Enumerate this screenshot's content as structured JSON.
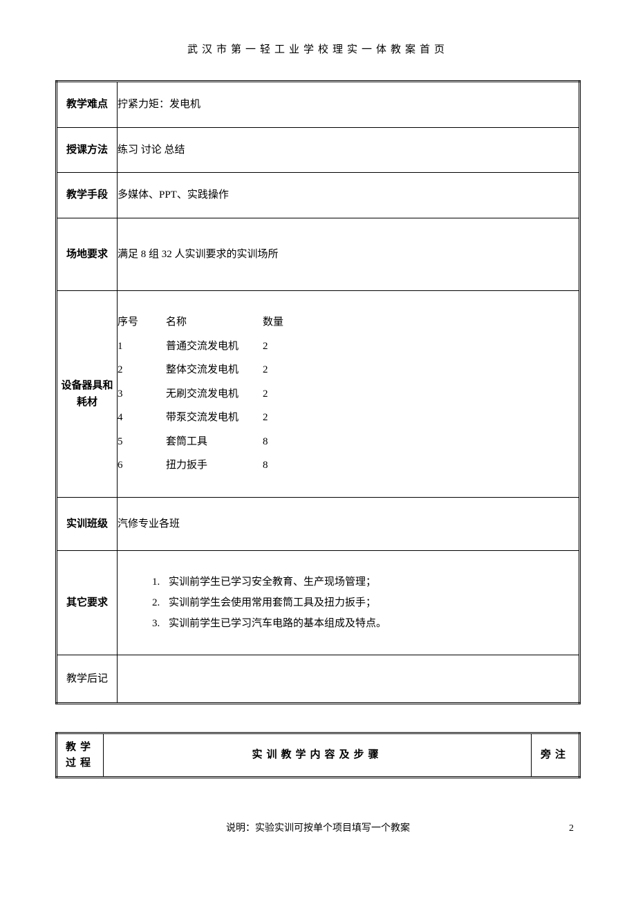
{
  "header": "武汉市第一轻工业学校理实一体教案首页",
  "rows": {
    "difficulty": {
      "label": "教学难点",
      "value": "拧紧力矩：发电机"
    },
    "method": {
      "label": "授课方法",
      "value": "练习 讨论 总结"
    },
    "means": {
      "label": "教学手段",
      "value": "多媒体、PPT、实践操作"
    },
    "venue": {
      "label": "场地要求",
      "value": "满足 8 组 32 人实训要求的实训场所"
    },
    "equipment": {
      "label": "设备器具和耗材",
      "headers": {
        "no": "序号",
        "name": "名称",
        "qty": "数量"
      },
      "items": [
        {
          "no": "1",
          "name": "普通交流发电机",
          "qty": "2"
        },
        {
          "no": "2",
          "name": "整体交流发电机",
          "qty": "2"
        },
        {
          "no": "3",
          "name": "无刷交流发电机",
          "qty": "2"
        },
        {
          "no": "4",
          "name": "带泵交流发电机",
          "qty": "2"
        },
        {
          "no": "5",
          "name": "套筒工具",
          "qty": "8"
        },
        {
          "no": "6",
          "name": "扭力扳手",
          "qty": "8"
        }
      ]
    },
    "class": {
      "label": "实训班级",
      "value": "汽修专业各班"
    },
    "other": {
      "label": "其它要求",
      "items": [
        "实训前学生已学习安全教育、生产现场管理；",
        "实训前学生会使用常用套筒工具及扭力扳手；",
        "实训前学生已学习汽车电路的基本组成及特点。"
      ]
    },
    "postscript": {
      "label": "教学后记",
      "value": ""
    }
  },
  "table2": {
    "process": "教学过程",
    "content": "实训教学内容及步骤",
    "note": "旁注"
  },
  "footer": "说明：实验实训可按单个项目填写一个教案",
  "pageNumber": "2"
}
